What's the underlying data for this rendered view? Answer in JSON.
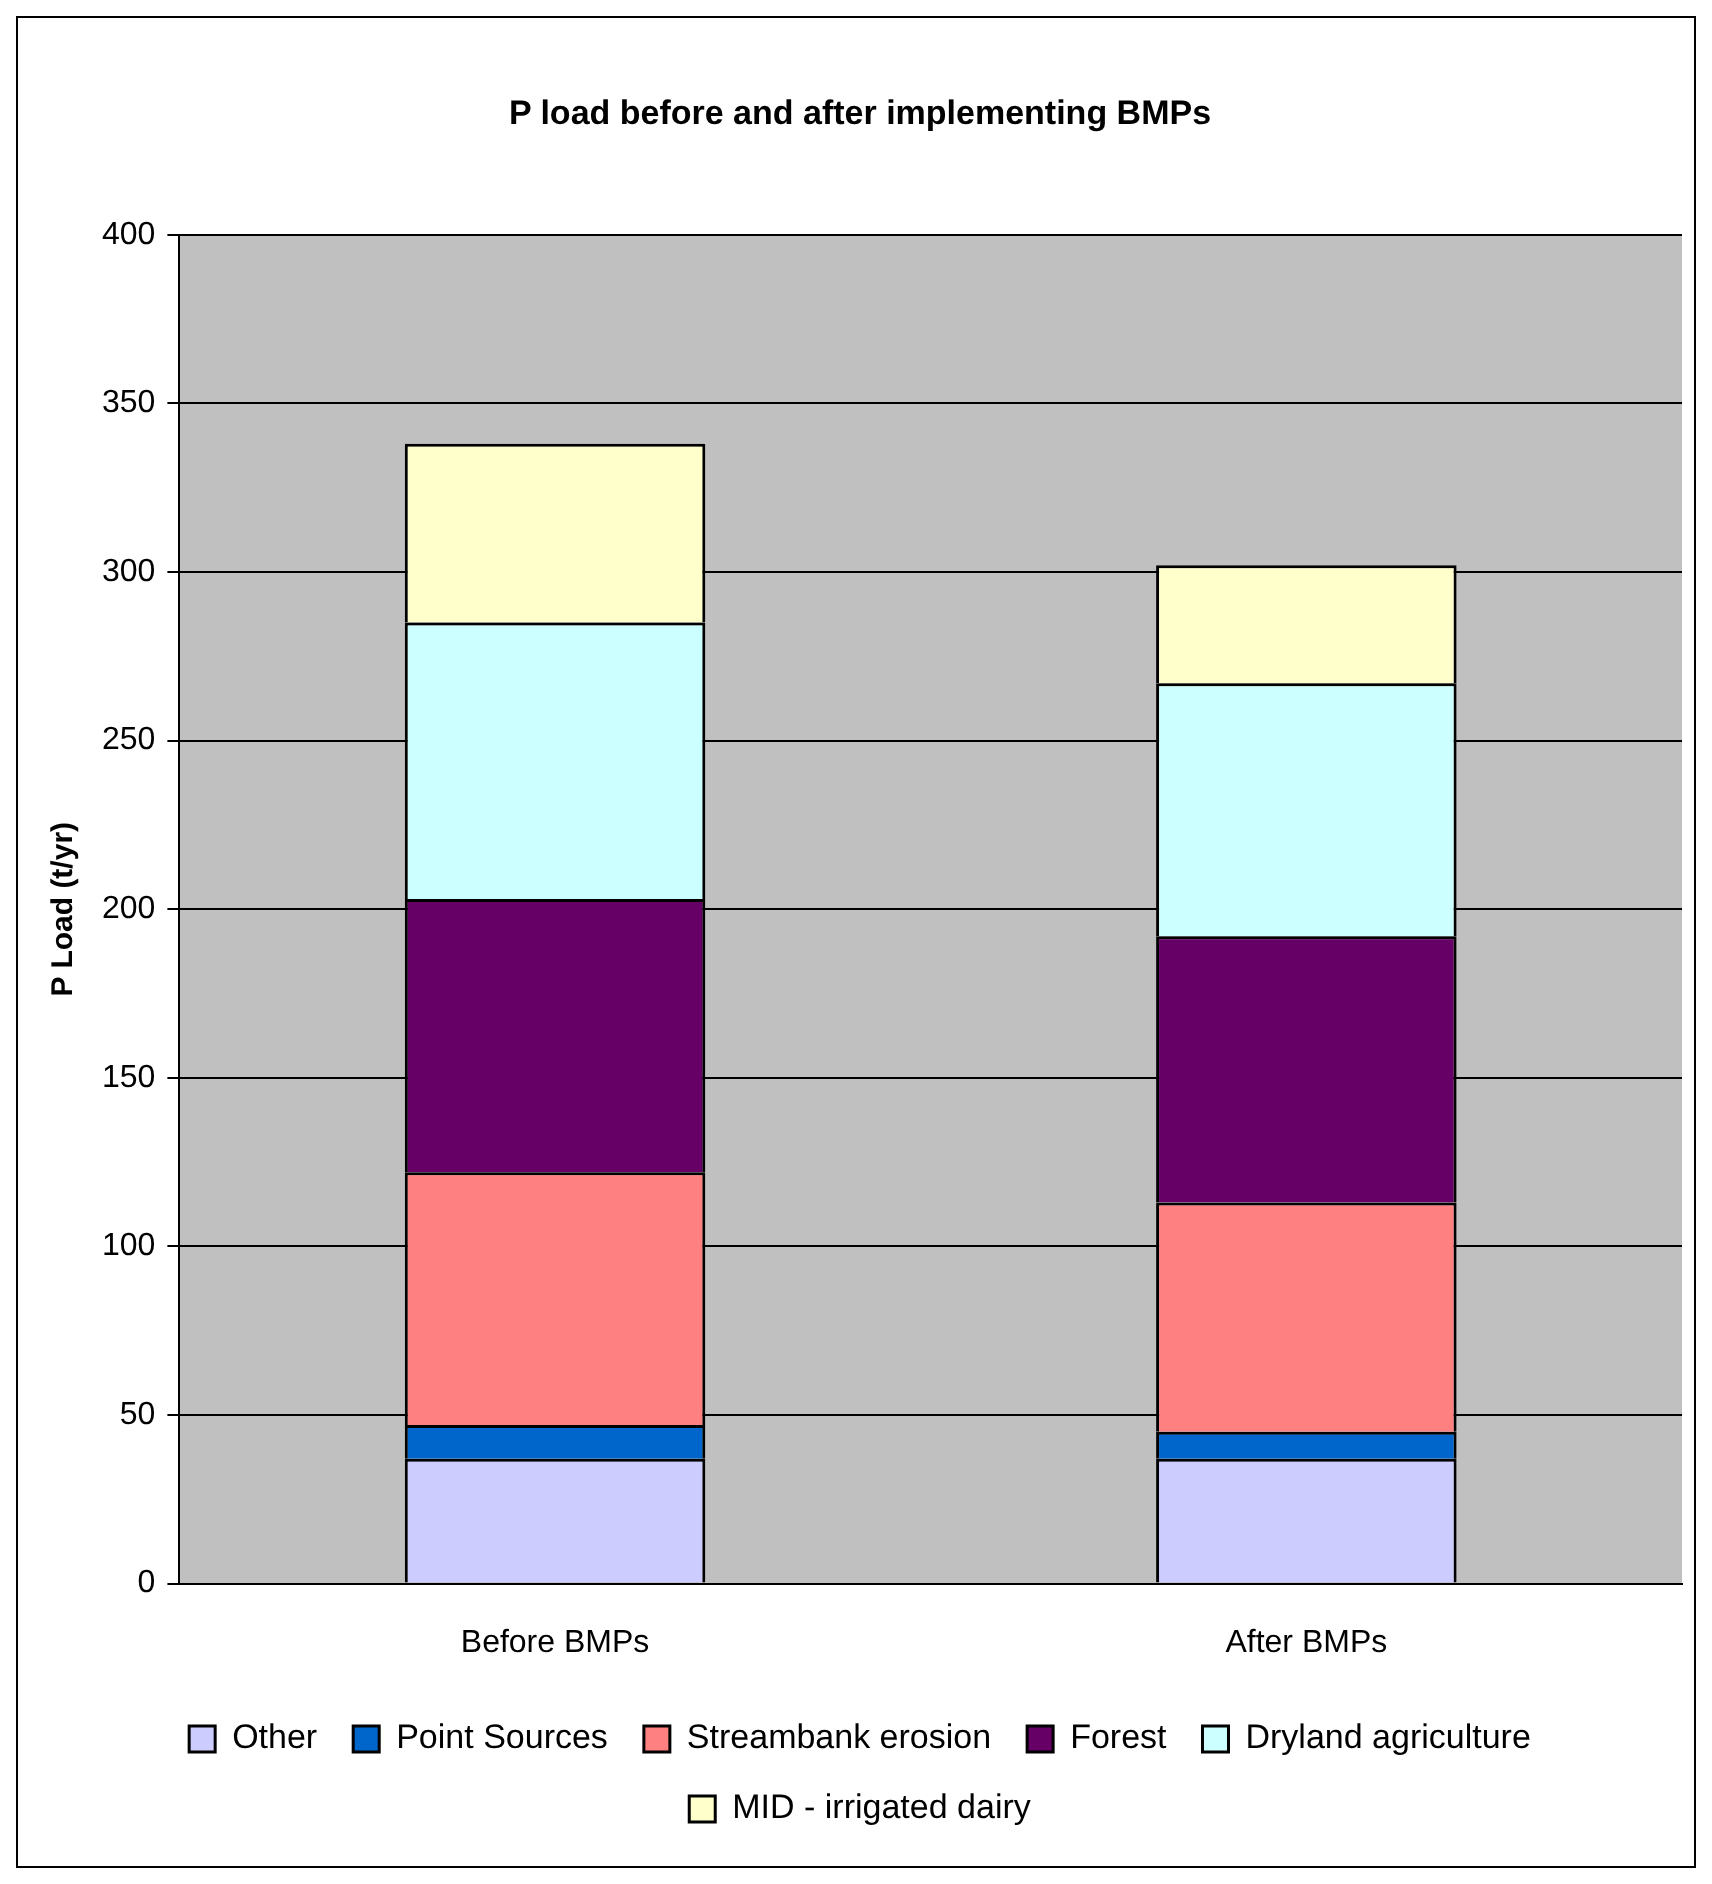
{
  "chart_data": {
    "type": "bar",
    "title": "P load before and after implementing BMPs",
    "ylabel": "P Load (t/yr)",
    "categories": [
      "Before BMPs",
      "After BMPs"
    ],
    "stacked": true,
    "ylim": [
      0,
      400
    ],
    "yticks": [
      0,
      50,
      100,
      150,
      200,
      250,
      300,
      350,
      400
    ],
    "grid": "y",
    "legend": "bottom",
    "series": [
      {
        "name": "Other",
        "color": "#ccccff",
        "values": [
          37,
          37
        ]
      },
      {
        "name": "Point Sources",
        "color": "#0066cc",
        "values": [
          10,
          8
        ]
      },
      {
        "name": "Streambank erosion",
        "color": "#ff8080",
        "values": [
          75,
          68
        ]
      },
      {
        "name": "Forest",
        "color": "#660066",
        "values": [
          81,
          79
        ]
      },
      {
        "name": "Dryland agriculture",
        "color": "#ccffff",
        "values": [
          82,
          75
        ]
      },
      {
        "name": "MID - irrigated dairy",
        "color": "#ffffcc",
        "values": [
          53,
          35
        ]
      }
    ]
  }
}
